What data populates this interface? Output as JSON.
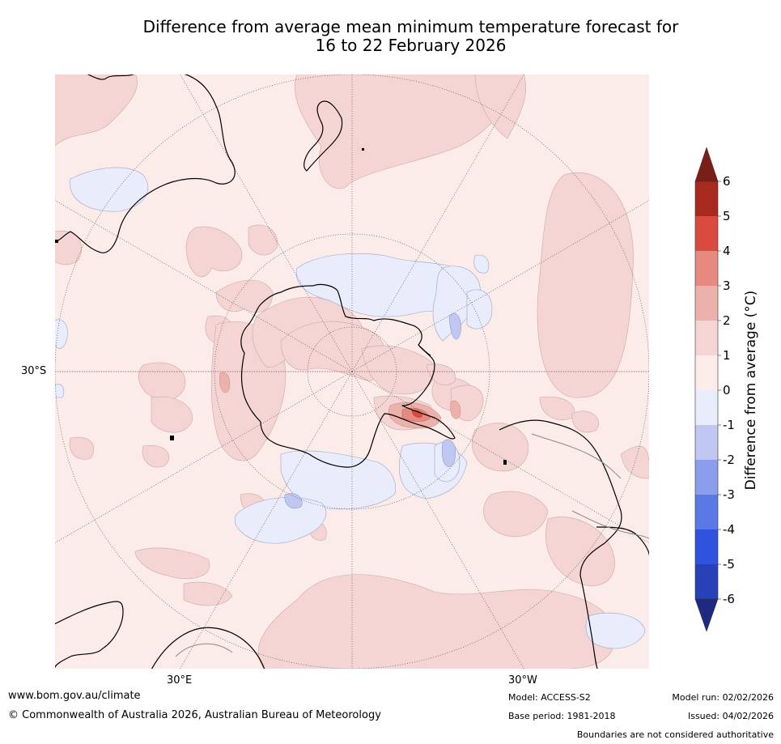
{
  "title": {
    "line1": "Difference from average mean minimum temperature forecast for",
    "line2": "16 to 22 February 2026"
  },
  "map": {
    "projection": "south-polar-stereographic",
    "lat_label": "30°S",
    "lon_labels": {
      "east": "30°E",
      "west": "30°W"
    },
    "colors": {
      "ocean_bg": "#fbecea",
      "warm_1_2": "#f4d5d3",
      "warm_2_3": "#ebb1aa",
      "warm_3_4": "#e6897f",
      "warm_4_5": "#d94b3e",
      "cool_0_1": "#e8ecfb",
      "cool_1_2": "#c0c8f2",
      "coast": "#000000",
      "border": "#888888",
      "grid": "#555555"
    }
  },
  "colorbar": {
    "title": "Difference from average (°C)",
    "ticks": [
      "6",
      "5",
      "4",
      "3",
      "2",
      "1",
      "0",
      "-1",
      "-2",
      "-3",
      "-4",
      "-5",
      "-6"
    ],
    "colors": {
      "over": "#7a1f18",
      "b5_6": "#a8291e",
      "b4_5": "#d94b3e",
      "b3_4": "#e6897f",
      "b2_3": "#ebb1aa",
      "b1_2": "#f4d5d3",
      "b0_1": "#fbecea",
      "bm1_0": "#e8ecfb",
      "bm2_m1": "#c0c8f2",
      "bm3_m2": "#8a9eec",
      "bm4_m3": "#5a79e4",
      "bm5_m4": "#2f52df",
      "bm6_m5": "#2742b8",
      "under": "#1e2a80"
    }
  },
  "footer": {
    "website": "www.bom.gov.au/climate",
    "copyright": "© Commonwealth of Australia 2026, Australian Bureau of Meteorology",
    "model": "Model: ACCESS-S2",
    "base_period": "Base period: 1981-2018",
    "model_run": "Model run: 02/02/2026",
    "issued": "Issued: 04/02/2026",
    "disclaimer": "Boundaries are not considered authoritative"
  }
}
